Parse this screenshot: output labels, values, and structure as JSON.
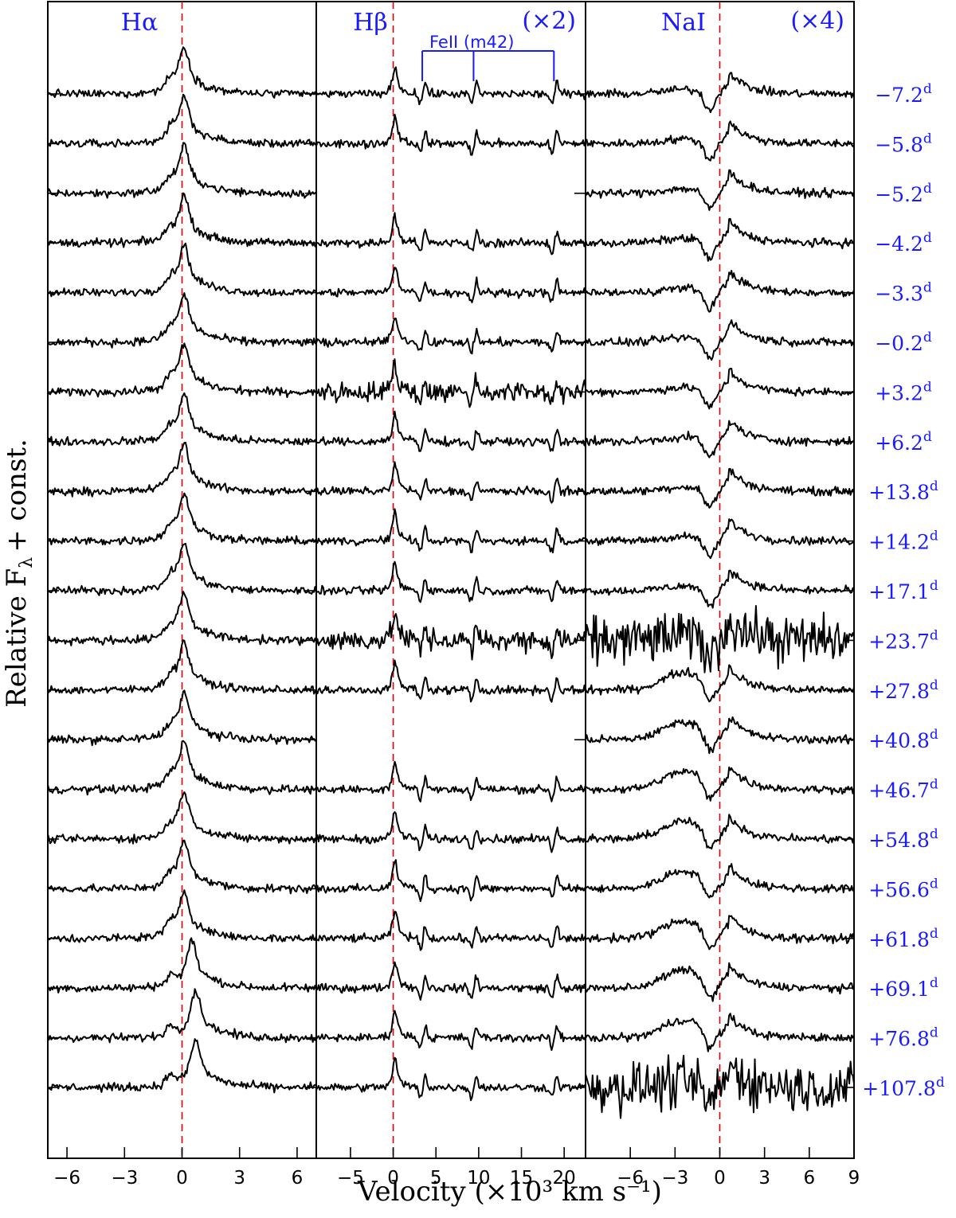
{
  "chart_data": {
    "type": "line",
    "ylabel": "Relative F",
    "ylabel_sub": "λ",
    "ylabel_suffix": "+ const.",
    "xlabel": "Velocity (×10³ km s⁻¹)",
    "epochs": [
      "−7.2",
      "−5.8",
      "−5.2",
      "−4.2",
      "−3.3",
      "−0.2",
      "+3.2",
      "+6.2",
      "+13.8",
      "+14.2",
      "+17.1",
      "+23.7",
      "+27.8",
      "+40.8",
      "+46.7",
      "+54.8",
      "+56.6",
      "+61.8",
      "+69.1",
      "+76.8",
      "+107.8"
    ],
    "epoch_unit": "d",
    "panels": [
      {
        "name": "halpha",
        "title": "Hα",
        "scale": "",
        "xlim": [
          -7,
          7
        ],
        "xticks": [
          "−6",
          "−3",
          "0",
          "3",
          "6"
        ],
        "xtick_values": [
          -6,
          -3,
          0,
          3,
          6
        ],
        "missing_epochs": [],
        "line_profile": {
          "center": 0.1,
          "peak_height": 4.4,
          "core_width": 0.22,
          "red_wing": 1.0,
          "blue_wing": 0.7,
          "blue_shoulder_at": -0.6
        }
      },
      {
        "name": "hbeta",
        "title": "Hβ",
        "scale": "(×2)",
        "xlim": [
          -9,
          22.5
        ],
        "xticks": [
          "−5",
          "0",
          "5",
          "10",
          "15",
          "20"
        ],
        "xtick_values": [
          -5,
          0,
          5,
          10,
          15,
          20
        ],
        "missing_epochs": [
          "−5.2",
          "+40.8"
        ],
        "feature_label": "FeII (m42)",
        "feature_velocities": [
          3.4,
          9.4,
          18.8
        ],
        "line_profile": {
          "center": 0.2,
          "peak_height": 2.6,
          "core_width": 0.25,
          "red_wing": 0.8,
          "blue_wing": 0.5
        }
      },
      {
        "name": "nai",
        "title": "NaI",
        "scale": "(×4)",
        "xlim": [
          -9,
          9
        ],
        "xticks": [
          "−6",
          "−3",
          "0",
          "3",
          "6",
          "9"
        ],
        "xtick_values": [
          -6,
          -3,
          0,
          3,
          6,
          9
        ],
        "missing_epochs": [],
        "line_profile": {
          "emission_center": 0.6,
          "absorption_center": -0.7,
          "broad_hump_center": -2.4
        }
      }
    ],
    "grid": false,
    "legend": "none"
  }
}
